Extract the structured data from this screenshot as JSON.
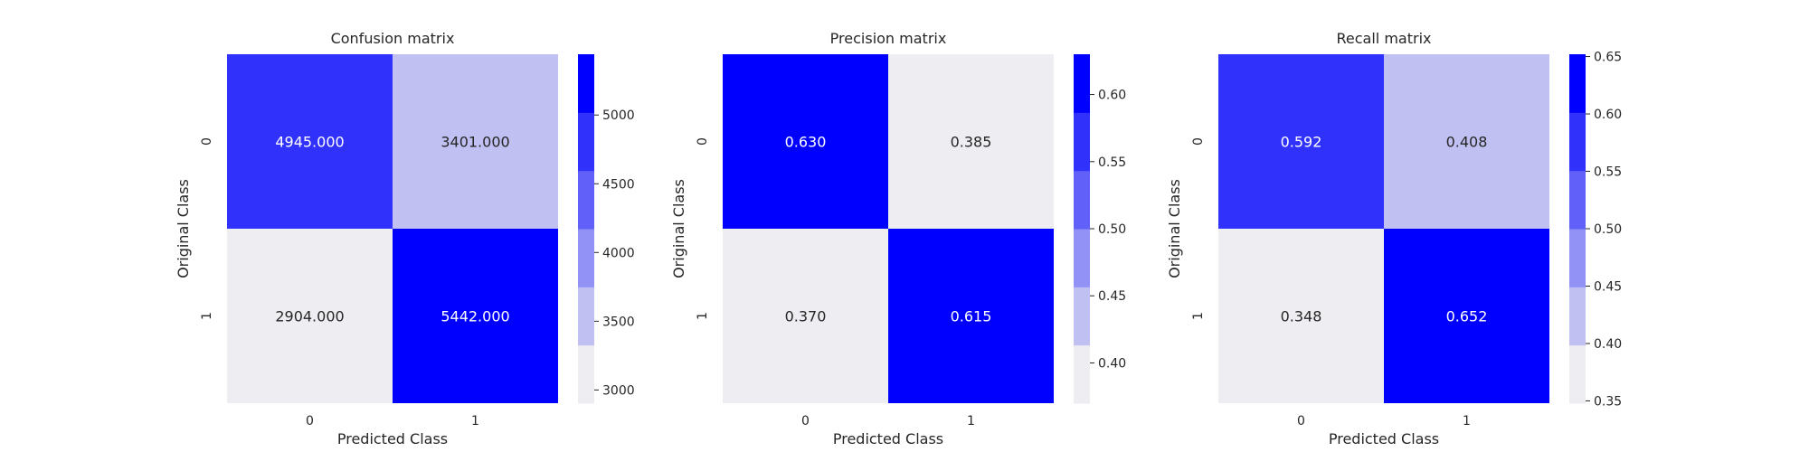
{
  "chart_data": [
    {
      "type": "heatmap",
      "title": "Confusion matrix",
      "xlabel": "Predicted Class",
      "ylabel": "Original Class",
      "x_categories": [
        "0",
        "1"
      ],
      "y_categories": [
        "0",
        "1"
      ],
      "values": [
        [
          4945.0,
          3401.0
        ],
        [
          2904.0,
          5442.0
        ]
      ],
      "annotations": [
        [
          "4945.000",
          "3401.000"
        ],
        [
          "2904.000",
          "5442.000"
        ]
      ],
      "colorbar": {
        "range": [
          2904,
          5442
        ],
        "ticks": [
          3000,
          3500,
          4000,
          4500,
          5000
        ],
        "tick_labels": [
          "3000",
          "3500",
          "4000",
          "4500",
          "5000"
        ]
      }
    },
    {
      "type": "heatmap",
      "title": "Precision matrix",
      "xlabel": "Predicted Class",
      "ylabel": "Original Class",
      "x_categories": [
        "0",
        "1"
      ],
      "y_categories": [
        "0",
        "1"
      ],
      "values": [
        [
          0.63,
          0.385
        ],
        [
          0.37,
          0.615
        ]
      ],
      "annotations": [
        [
          "0.630",
          "0.385"
        ],
        [
          "0.370",
          "0.615"
        ]
      ],
      "colorbar": {
        "range": [
          0.37,
          0.63
        ],
        "ticks": [
          0.4,
          0.45,
          0.5,
          0.55,
          0.6
        ],
        "tick_labels": [
          "0.40",
          "0.45",
          "0.50",
          "0.55",
          "0.60"
        ]
      }
    },
    {
      "type": "heatmap",
      "title": "Recall matrix",
      "xlabel": "Predicted Class",
      "ylabel": "Original Class",
      "x_categories": [
        "0",
        "1"
      ],
      "y_categories": [
        "0",
        "1"
      ],
      "values": [
        [
          0.592,
          0.408
        ],
        [
          0.348,
          0.652
        ]
      ],
      "annotations": [
        [
          "0.592",
          "0.408"
        ],
        [
          "0.348",
          "0.652"
        ]
      ],
      "colorbar": {
        "range": [
          0.348,
          0.652
        ],
        "ticks": [
          0.35,
          0.4,
          0.45,
          0.5,
          0.55,
          0.6,
          0.65
        ],
        "tick_labels": [
          "0.35",
          "0.40",
          "0.45",
          "0.50",
          "0.55",
          "0.60",
          "0.65"
        ]
      }
    }
  ],
  "colormap": {
    "levels": [
      "#eeeef2",
      "#c0c0f3",
      "#9191f6",
      "#6161f9",
      "#3131fc",
      "#0000ff"
    ],
    "dark_text_color": "#262626",
    "light_text_color": "#ffffff"
  }
}
